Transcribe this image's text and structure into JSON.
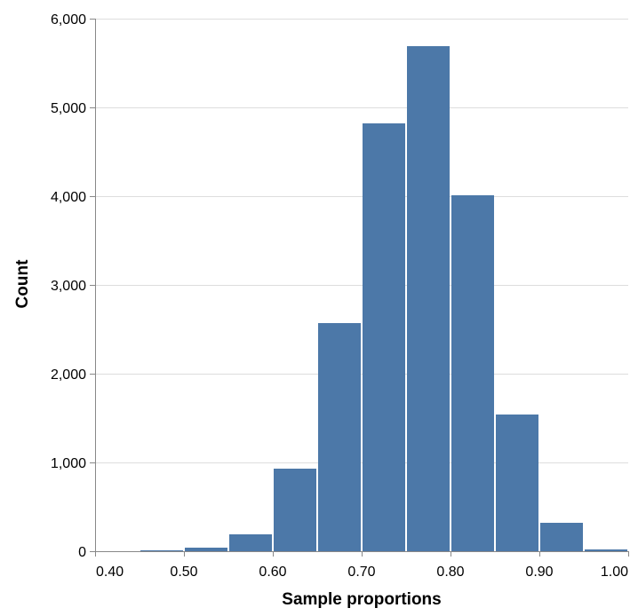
{
  "chart_data": {
    "type": "bar",
    "title": "",
    "xlabel": "Sample proportions",
    "ylabel": "Count",
    "xlim": [
      0.4,
      1.0
    ],
    "ylim": [
      0,
      6000
    ],
    "grid": true,
    "bar_color": "#4c78a8",
    "grid_color": "#dddddd",
    "axis_color": "#888888",
    "x_ticks": [
      0.4,
      0.5,
      0.6,
      0.7,
      0.8,
      0.9,
      1.0
    ],
    "x_tick_labels": [
      "0.40",
      "0.50",
      "0.60",
      "0.70",
      "0.80",
      "0.90",
      "1.00"
    ],
    "y_ticks": [
      0,
      1000,
      2000,
      3000,
      4000,
      5000,
      6000
    ],
    "y_tick_labels": [
      "0",
      "1,000",
      "2,000",
      "3,000",
      "4,000",
      "5,000",
      "6,000"
    ],
    "bins": [
      {
        "start": 0.45,
        "end": 0.5,
        "value": 10
      },
      {
        "start": 0.5,
        "end": 0.55,
        "value": 40
      },
      {
        "start": 0.55,
        "end": 0.6,
        "value": 190
      },
      {
        "start": 0.6,
        "end": 0.65,
        "value": 930
      },
      {
        "start": 0.65,
        "end": 0.7,
        "value": 2570
      },
      {
        "start": 0.7,
        "end": 0.75,
        "value": 4820
      },
      {
        "start": 0.75,
        "end": 0.8,
        "value": 5690
      },
      {
        "start": 0.8,
        "end": 0.85,
        "value": 4010
      },
      {
        "start": 0.85,
        "end": 0.9,
        "value": 1540
      },
      {
        "start": 0.9,
        "end": 0.95,
        "value": 320
      },
      {
        "start": 0.95,
        "end": 1.0,
        "value": 20
      }
    ]
  }
}
